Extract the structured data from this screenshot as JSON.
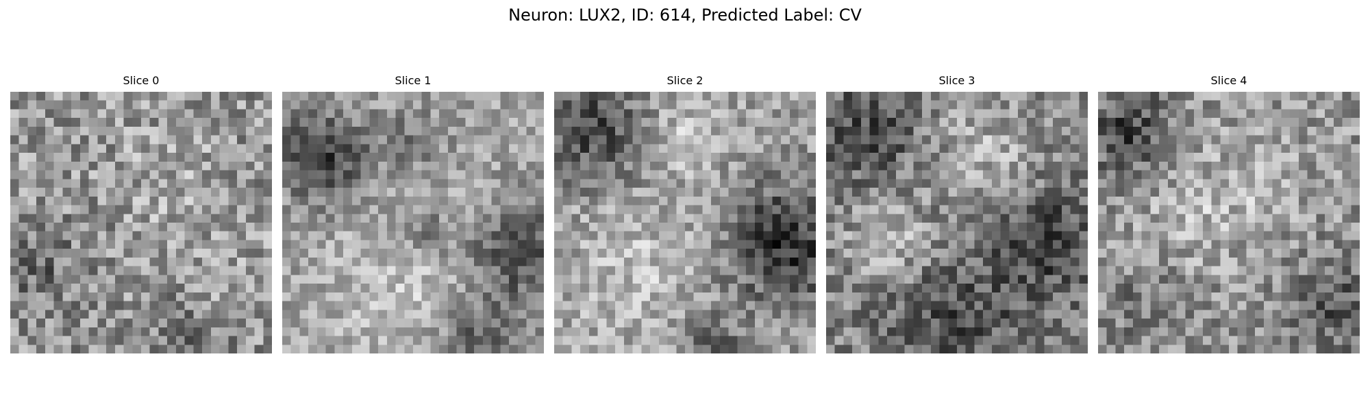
{
  "figure": {
    "title": "Neuron: LUX2, ID: 614, Predicted Label: CV"
  },
  "colormap": "gray",
  "slices": [
    {
      "title": "Slice 0"
    },
    {
      "title": "Slice 1"
    },
    {
      "title": "Slice 2"
    },
    {
      "title": "Slice 3"
    },
    {
      "title": "Slice 4"
    }
  ]
}
